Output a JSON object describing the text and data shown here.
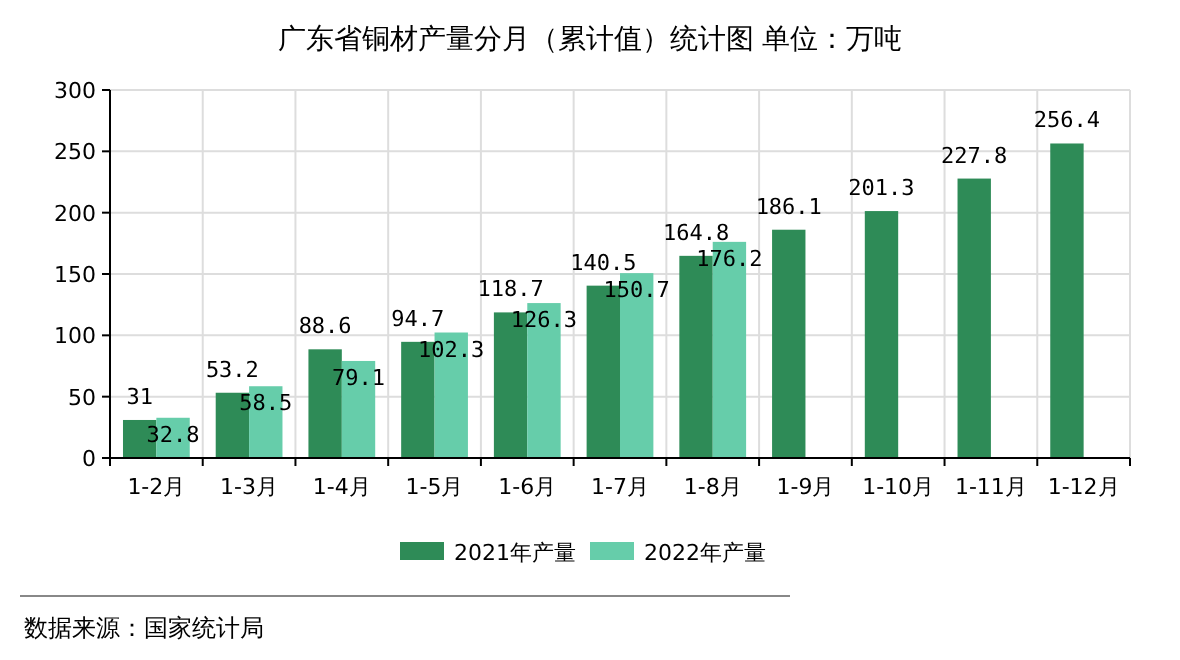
{
  "chart_data": {
    "type": "bar",
    "title": "广东省铜材产量分月（累计值）统计图 单位：万吨",
    "categories": [
      "1-2月",
      "1-3月",
      "1-4月",
      "1-5月",
      "1-6月",
      "1-7月",
      "1-8月",
      "1-9月",
      "1-10月",
      "1-11月",
      "1-12月"
    ],
    "series": [
      {
        "name": "2021年产量",
        "color": "#2e8b57",
        "values": [
          31,
          53.2,
          88.6,
          94.7,
          118.7,
          140.5,
          164.8,
          186.1,
          201.3,
          227.8,
          256.4
        ]
      },
      {
        "name": "2022年产量",
        "color": "#66cdaa",
        "values": [
          32.8,
          58.5,
          79.1,
          102.3,
          126.3,
          150.7,
          176.2,
          null,
          null,
          null,
          null
        ]
      }
    ],
    "ylim": [
      0,
      300
    ],
    "yticks": [
      0,
      50,
      100,
      150,
      200,
      250,
      300
    ],
    "grid": true,
    "legend": "bottom",
    "data_labels": true,
    "annotations": [
      "数据来源：国家统计局"
    ]
  }
}
